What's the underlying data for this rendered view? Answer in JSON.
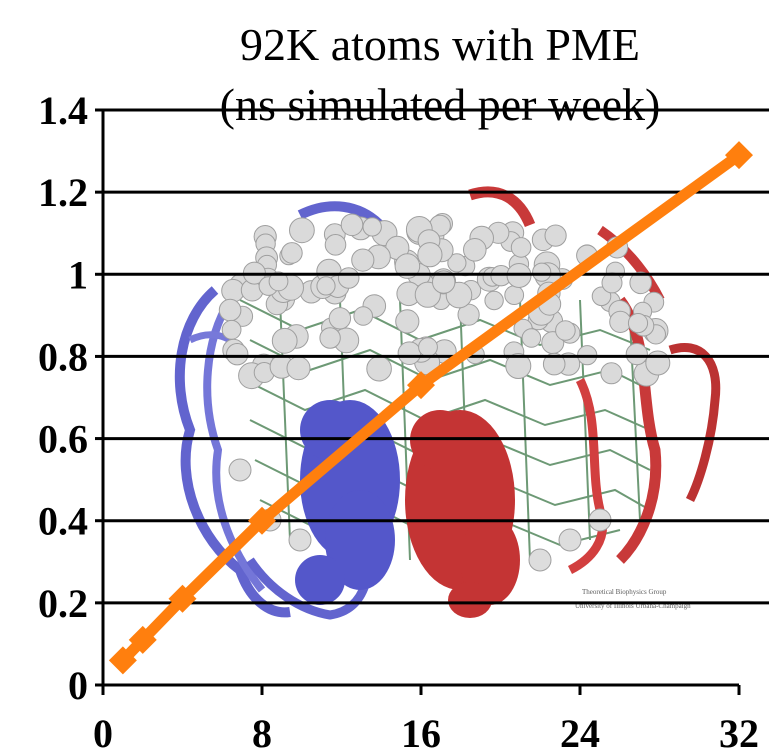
{
  "chart_data": {
    "type": "line",
    "title": "92K atoms with PME",
    "subtitle": "(ns simulated per week)",
    "x": [
      1,
      2,
      4,
      8,
      16,
      32
    ],
    "series": [
      {
        "values": [
          0.06,
          0.11,
          0.21,
          0.4,
          0.73,
          1.29
        ]
      }
    ],
    "xlim": [
      0,
      32
    ],
    "ylim": [
      0,
      1.4
    ],
    "x_ticks": [
      0,
      8,
      16,
      24,
      32
    ],
    "x_tick_labels": [
      "0",
      "8",
      "16",
      "24",
      "32"
    ],
    "y_ticks": [
      0,
      0.2,
      0.4,
      0.6,
      0.8,
      1,
      1.2,
      1.4
    ],
    "y_tick_labels": [
      "0",
      "0.2",
      "0.4",
      "0.6",
      "0.8",
      "1",
      "1.2",
      "1.4"
    ],
    "grid": true,
    "legend": "none",
    "line_color": "#ff7f0e",
    "grid_color": "#000000",
    "background_image": "protein-molecule-render",
    "watermark": {
      "line1": "Theoretical Biophysics Group",
      "line2": "University of Illinois Urbana-Champaign"
    }
  }
}
